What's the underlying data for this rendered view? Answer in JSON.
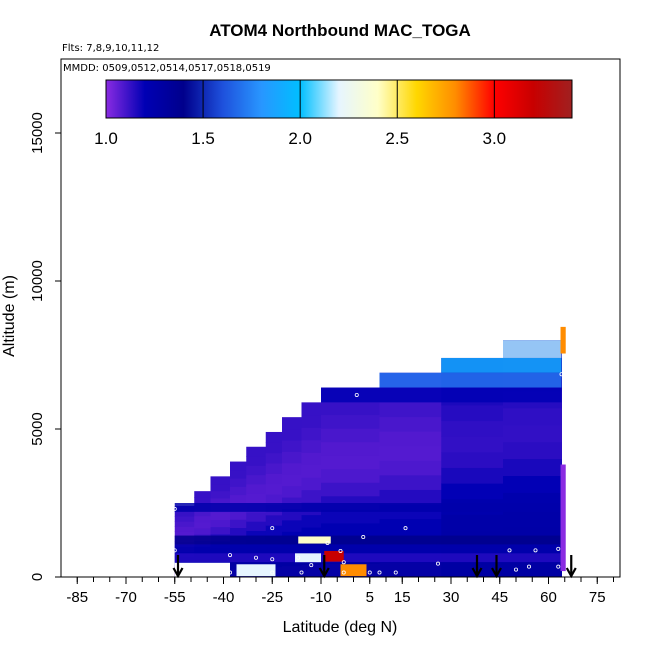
{
  "chart_data": {
    "type": "heatmap",
    "title": "ATOM4 Northbound MAC_TOGA",
    "flights_text": "Flts: 7,8,9,10,11,12",
    "dates_text": "MMDD: 0509,0512,0514,0517,0518,0519",
    "xlabel": "Latitude (deg N)",
    "ylabel": "Altitude (m)",
    "xlim": [
      -90,
      82
    ],
    "ylim": [
      0,
      17500
    ],
    "x_ticks": [
      "-85",
      "-70",
      "-55",
      "-40",
      "-25",
      "-10",
      "5",
      "15",
      "30",
      "45",
      "60",
      "75"
    ],
    "x_tick_values": [
      -85,
      -70,
      -55,
      -40,
      -25,
      -10,
      5,
      15,
      30,
      45,
      60,
      75
    ],
    "y_ticks": [
      "0",
      "5000",
      "10000",
      "15000"
    ],
    "y_tick_values": [
      0,
      5000,
      10000,
      15000
    ],
    "grid": false,
    "colorbar": {
      "range": [
        1.0,
        3.4
      ],
      "ticks": [
        "1.0",
        "1.5",
        "2.0",
        "2.5",
        "3.0"
      ],
      "tick_values": [
        1.0,
        1.5,
        2.0,
        2.5,
        3.0
      ],
      "colors": [
        "#8a2be2",
        "#0000b4",
        "#00008c",
        "#1e50dc",
        "#2896ff",
        "#00bfff",
        "#e6f5ff",
        "#ffffc8",
        "#ffd700",
        "#ff8c00",
        "#ff0000",
        "#c80000",
        "#a02020"
      ]
    },
    "arrows_latitude": [
      -54,
      -9,
      38,
      44,
      67
    ],
    "profile_columns": [
      {
        "lat0": -55,
        "lat1": -49,
        "top": 2400
      },
      {
        "lat0": -49,
        "lat1": -44,
        "top": 2900
      },
      {
        "lat0": -44,
        "lat1": -38,
        "top": 3400
      },
      {
        "lat0": -38,
        "lat1": -33,
        "top": 3900
      },
      {
        "lat0": -33,
        "lat1": -27,
        "top": 4400
      },
      {
        "lat0": -27,
        "lat1": -22,
        "top": 4900
      },
      {
        "lat0": -22,
        "lat1": -16,
        "top": 5400
      },
      {
        "lat0": -16,
        "lat1": -10,
        "top": 5900
      },
      {
        "lat0": -10,
        "lat1": 8,
        "top": 6400
      },
      {
        "lat0": 8,
        "lat1": 27,
        "top": 6900
      },
      {
        "lat0": 27,
        "lat1": 46,
        "top": 7400
      },
      {
        "lat0": 46,
        "lat1": 64,
        "top": 8000
      }
    ],
    "layers": [
      {
        "alt0": 7400,
        "alt1": 8000,
        "lat0": 46,
        "lat1": 64,
        "value": 2.15
      },
      {
        "alt0": 6900,
        "alt1": 7400,
        "lat0": 27,
        "lat1": 64,
        "value": 1.9
      },
      {
        "alt0": 6400,
        "alt1": 6900,
        "lat0": 8,
        "lat1": 64,
        "value": 1.7
      },
      {
        "alt0": 5900,
        "alt1": 6400,
        "lat0": -10,
        "lat1": 64,
        "value": 1.2
      },
      {
        "alt0": 2200,
        "alt1": 2500,
        "lat0": -55,
        "lat1": 64,
        "value": 1.25
      },
      {
        "alt0": 1100,
        "alt1": 1400,
        "lat0": -55,
        "lat1": 64,
        "value": 1.4
      },
      {
        "alt0": 800,
        "alt1": 1100,
        "lat0": -55,
        "lat1": 64,
        "value": 1.25
      },
      {
        "alt0": 500,
        "alt1": 800,
        "lat0": -55,
        "lat1": 64,
        "value": 1.15
      },
      {
        "alt0": 0,
        "alt1": 500,
        "lat0": -38,
        "lat1": 64,
        "value": 1.3
      }
    ],
    "features": [
      {
        "lat": -12,
        "alt_center": 1250,
        "alt_half": 120,
        "lat_half": 5,
        "value": 2.4
      },
      {
        "lat": -6,
        "alt_center": 700,
        "alt_half": 180,
        "lat_half": 3,
        "value": 3.2
      },
      {
        "lat": -14,
        "alt_center": 650,
        "alt_half": 150,
        "lat_half": 4,
        "value": 2.2
      },
      {
        "lat": -30,
        "alt_center": 230,
        "alt_half": 200,
        "lat_half": 6,
        "value": 2.2
      },
      {
        "lat": 0,
        "alt_center": 230,
        "alt_half": 200,
        "lat_half": 4,
        "value": 2.8
      },
      {
        "lat": 64.5,
        "alt_center": 2000,
        "alt_half": 1800,
        "lat_half": 0.8,
        "value": 1.0
      },
      {
        "lat": 64.5,
        "alt_center": 8000,
        "alt_half": 450,
        "lat_half": 0.8,
        "value": 2.8
      },
      {
        "lat": -52,
        "alt_center": 200,
        "alt_half": 200,
        "lat_half": 3,
        "value": 1.0
      }
    ],
    "blank_regions": [
      {
        "lat0": -55,
        "lat1": -38,
        "alt0": 0,
        "alt1": 480
      }
    ],
    "sample_points": [
      [
        -55,
        2300
      ],
      [
        -55,
        900
      ],
      [
        -38,
        740
      ],
      [
        -38,
        150
      ],
      [
        -30,
        650
      ],
      [
        -25,
        1650
      ],
      [
        -25,
        600
      ],
      [
        -25,
        150
      ],
      [
        -17,
        650
      ],
      [
        -16,
        150
      ],
      [
        -13,
        400
      ],
      [
        -8,
        1150
      ],
      [
        -4,
        880
      ],
      [
        -3,
        500
      ],
      [
        -3,
        150
      ],
      [
        1,
        6150
      ],
      [
        3,
        1350
      ],
      [
        5,
        150
      ],
      [
        8,
        150
      ],
      [
        13,
        150
      ],
      [
        16,
        1650
      ],
      [
        26,
        450
      ],
      [
        48,
        900
      ],
      [
        50,
        250
      ],
      [
        54,
        350
      ],
      [
        56,
        900
      ],
      [
        64,
        6850
      ],
      [
        63,
        950
      ],
      [
        63,
        350
      ]
    ]
  }
}
